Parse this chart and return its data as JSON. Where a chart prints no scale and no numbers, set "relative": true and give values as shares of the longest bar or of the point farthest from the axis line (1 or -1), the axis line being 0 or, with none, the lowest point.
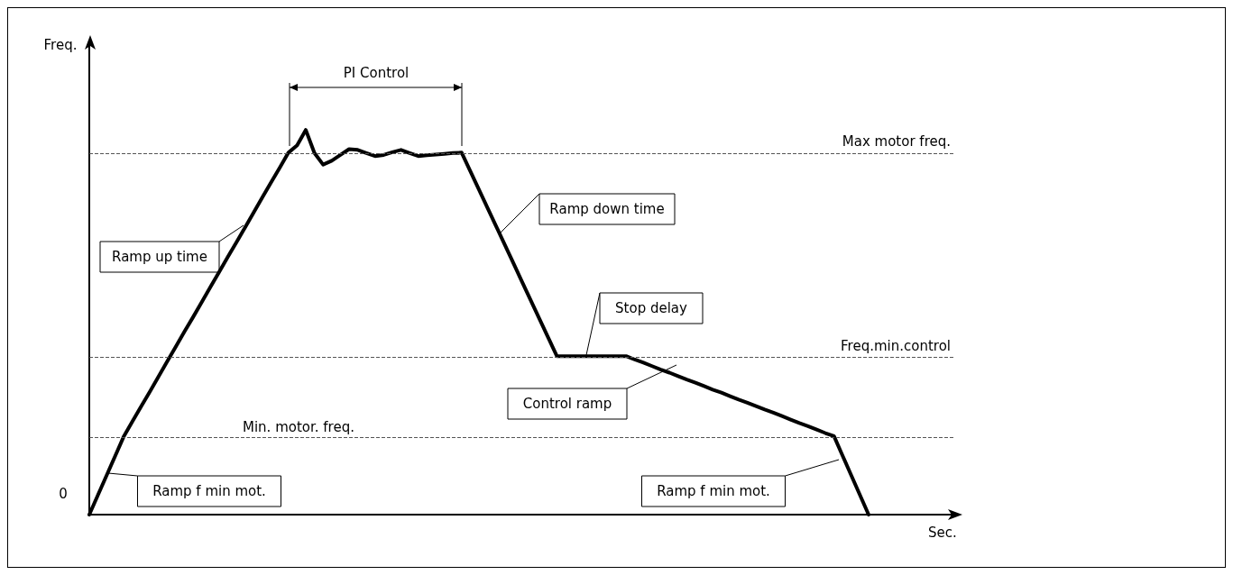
{
  "chart_data": {
    "type": "line",
    "relative": true,
    "xlabel": "Sec.",
    "grid": false,
    "marker": "none",
    "line_style": "solid",
    "categories": [
      null,
      null,
      null,
      null,
      null,
      null,
      null,
      null,
      null,
      null,
      null,
      null,
      null,
      null,
      null,
      null,
      null,
      null,
      null,
      null,
      null,
      null,
      null,
      null,
      null,
      null,
      null,
      null,
      null,
      null,
      null,
      null,
      null,
      null,
      null,
      null,
      null,
      null,
      null,
      null,
      null,
      null,
      null,
      null,
      null,
      null,
      null,
      null,
      null,
      null,
      null,
      null,
      null,
      null,
      null,
      null,
      null,
      null,
      null,
      null,
      null,
      null,
      null,
      null,
      null,
      null,
      null,
      null,
      null,
      null,
      null,
      null,
      null,
      null,
      null,
      null,
      null,
      null,
      null,
      null,
      null,
      null,
      null,
      null,
      null,
      null,
      null,
      null,
      null,
      null,
      null,
      null,
      null,
      null,
      null,
      null,
      null,
      null,
      null,
      null,
      null
    ],
    "series": [
      {
        "color": "#000000",
        "values": [
          0,
          0.051,
          0.102,
          0.153,
          0.204,
          0.243,
          0.282,
          0.32,
          0.359,
          0.398,
          0.437,
          0.476,
          0.514,
          0.553,
          0.592,
          0.631,
          0.67,
          0.708,
          0.747,
          0.786,
          0.825,
          0.864,
          0.902,
          0.941,
          0.96,
          1,
          0.94,
          0.91,
          0.92,
          0.935,
          0.95,
          0.948,
          0.94,
          0.932,
          0.935,
          0.942,
          0.948,
          0.94,
          0.932,
          0.934,
          0.936,
          0.938,
          0.94,
          0.941,
          0.893,
          0.845,
          0.797,
          0.749,
          0.701,
          0.653,
          0.604,
          0.556,
          0.508,
          0.46,
          0.412,
          0.412,
          0.412,
          0.412,
          0.412,
          0.412,
          0.412,
          0.412,
          0.412,
          0.403,
          0.395,
          0.386,
          0.377,
          0.369,
          0.36,
          0.351,
          0.343,
          0.334,
          0.325,
          0.317,
          0.308,
          0.299,
          0.291,
          0.282,
          0.273,
          0.265,
          0.256,
          0.247,
          0.238,
          0.23,
          0.221,
          0.212,
          0.204,
          0.153,
          0.102,
          0.051,
          0,
          null,
          null,
          null,
          null,
          null,
          null,
          null,
          null,
          null,
          null
        ]
      }
    ],
    "ref_lines": [
      {
        "axis": "y",
        "value": 0.941,
        "label": "Max motor freq.",
        "color": "#555555",
        "line_style": "dashed"
      },
      {
        "axis": "y",
        "value": 0.412,
        "label": "Freq.min.control",
        "color": "#555555",
        "line_style": "dashed"
      },
      {
        "axis": "y",
        "value": 0.204,
        "label": "Min. motor. freq.",
        "color": "#555555",
        "line_style": "dashed"
      }
    ],
    "annotations": [
      "PI Control",
      "Ramp up time",
      "Ramp down time",
      "Stop delay",
      "Control ramp",
      "Ramp f min mot.",
      "Ramp f min mot.",
      "0",
      "Freq."
    ]
  }
}
